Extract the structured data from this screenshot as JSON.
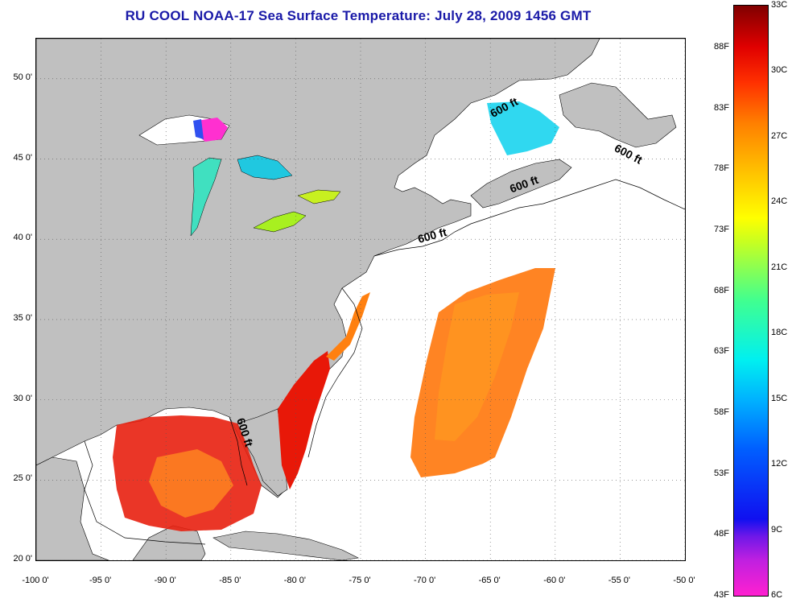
{
  "title": "RU COOL  NOAA-17  Sea Surface Temperature:  July 28, 2009 1456 GMT",
  "map": {
    "lon_range": [
      -100,
      -50
    ],
    "lat_range": [
      20,
      52.5
    ],
    "x_ticks": [
      {
        "lon": -100,
        "label": "-100 0'"
      },
      {
        "lon": -95,
        "label": "-95 0'"
      },
      {
        "lon": -90,
        "label": "-90 0'"
      },
      {
        "lon": -85,
        "label": "-85 0'"
      },
      {
        "lon": -80,
        "label": "-80 0'"
      },
      {
        "lon": -75,
        "label": "-75 0'"
      },
      {
        "lon": -70,
        "label": "-70 0'"
      },
      {
        "lon": -65,
        "label": "-65 0'"
      },
      {
        "lon": -60,
        "label": "-60 0'"
      },
      {
        "lon": -55,
        "label": "-55 0'"
      },
      {
        "lon": -50,
        "label": "-50 0'"
      }
    ],
    "y_ticks": [
      {
        "lat": 20,
        "label": "20 0'"
      },
      {
        "lat": 25,
        "label": "25 0'"
      },
      {
        "lat": 30,
        "label": "30 0'"
      },
      {
        "lat": 35,
        "label": "35 0'"
      },
      {
        "lat": 40,
        "label": "40 0'"
      },
      {
        "lat": 45,
        "label": "45 0'"
      },
      {
        "lat": 50,
        "label": "50 0'"
      }
    ],
    "grid": "dotted",
    "contour_labels": [
      {
        "text": "600 ft",
        "lon": -63.8,
        "lat": 48.0,
        "angle": -28
      },
      {
        "text": "600 ft",
        "lon": -54.5,
        "lat": 45.1,
        "angle": 28
      },
      {
        "text": "600 ft",
        "lon": -62.3,
        "lat": 43.2,
        "angle": -20
      },
      {
        "text": "600 ft",
        "lon": -69.4,
        "lat": 40.0,
        "angle": -15
      },
      {
        "text": "600 ft",
        "lon": -84.2,
        "lat": 27.9,
        "angle": 72
      }
    ],
    "land_color": "#c0c0c0",
    "ocean_color": "#ffffff"
  },
  "colorbar": {
    "celsius_labels": [
      "33C",
      "30C",
      "27C",
      "24C",
      "21C",
      "18C",
      "15C",
      "12C",
      "9C",
      "6C"
    ],
    "fahrenheit_labels": [
      "88F",
      "83F",
      "78F",
      "73F",
      "68F",
      "63F",
      "58F",
      "53F",
      "48F",
      "43F"
    ],
    "range_c": [
      6,
      33
    ],
    "colors": [
      "#ff20d0",
      "#1010f0",
      "#00f0f0",
      "#ffff00",
      "#ff8000",
      "#e00000",
      "#800000"
    ]
  }
}
